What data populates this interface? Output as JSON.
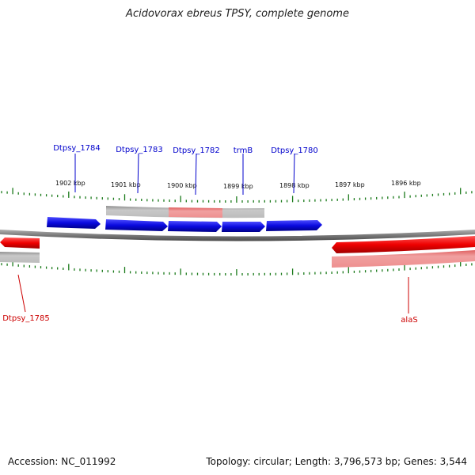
{
  "title": "Acidovorax ebreus TPSY, complete genome",
  "footer": {
    "accession": "Accession: NC_011992",
    "topology": "Topology: circular; Length: 3,796,573 bp; Genes: 3,544"
  },
  "scale_labels": [
    "1902 kbp",
    "1901 kbp",
    "1900 kbp",
    "1899 kbp",
    "1898 kbp",
    "1897 kbp",
    "1896 kbp"
  ],
  "gene_labels": {
    "forward": [
      "Dtpsy_1784",
      "Dtpsy_1783",
      "Dtpsy_1782",
      "trmB",
      "Dtpsy_1780"
    ],
    "reverse": [
      "Dtpsy_1785",
      "alaS"
    ]
  },
  "colors": {
    "forward_gene": "#0a0adf",
    "reverse_gene": "#ee0000",
    "label_forward": "#0000cc",
    "label_reverse": "#cc0000",
    "tick": "#1a7a1a",
    "backbone": "#808080"
  }
}
